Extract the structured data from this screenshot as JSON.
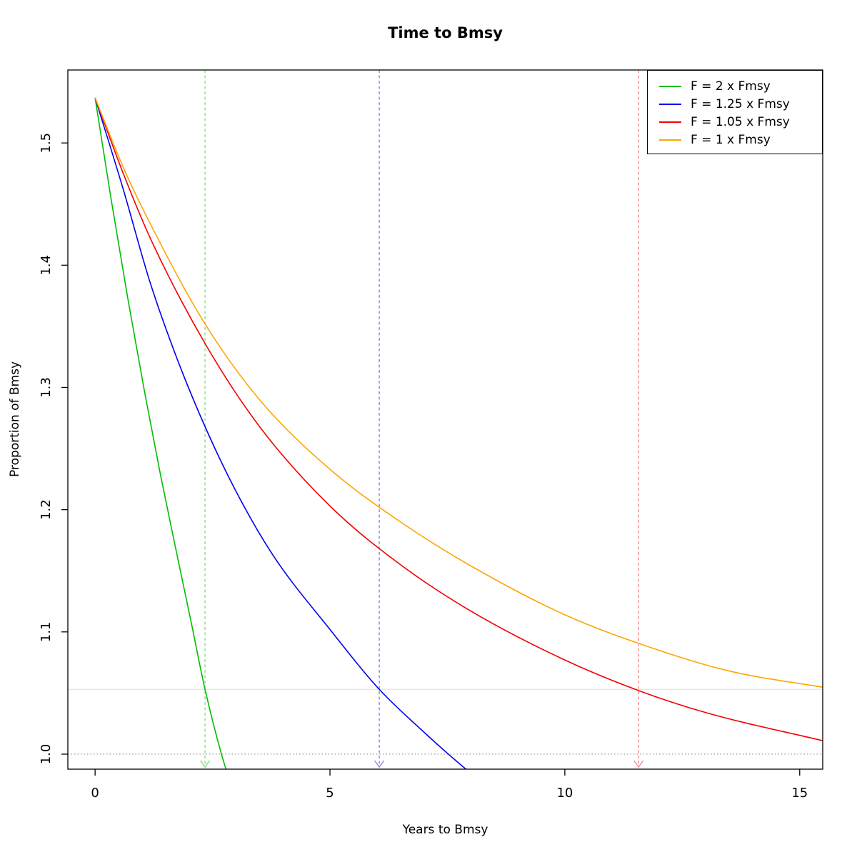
{
  "chart_data": {
    "type": "line",
    "title": "Time to Bmsy",
    "xlabel": "Years to Bmsy",
    "ylabel": "Proportion of Bmsy",
    "x_ticks": [
      0,
      5,
      10,
      15
    ],
    "y_ticks": [
      {
        "value": 1.0,
        "label": "1.0"
      },
      {
        "value": 1.1,
        "label": "1.1"
      },
      {
        "value": 1.2,
        "label": "1.2"
      },
      {
        "value": 1.3,
        "label": "1.3"
      },
      {
        "value": 1.4,
        "label": "1.4"
      },
      {
        "value": 1.5,
        "label": "1.5"
      }
    ],
    "xlim": [
      -0.58,
      15.49
    ],
    "ylim": [
      0.9877,
      1.5597
    ],
    "grid": false,
    "legend_position": "topright",
    "start_proportion": 1.537,
    "threshold_line": {
      "value": 1.053,
      "color": "#E3E3E3",
      "style": "solid"
    },
    "reference_line": {
      "value": 1.0,
      "color": "#8C8C8C",
      "style": "dotted"
    },
    "series": [
      {
        "name": "F = 2 x Fmsy",
        "color": "#00BE00",
        "arrow_color": "#82E082",
        "time_to_bmsy_years": 2.34,
        "points": [
          [
            0,
            1.537
          ],
          [
            0.35,
            1.452
          ],
          [
            0.7,
            1.372
          ],
          [
            1.05,
            1.297
          ],
          [
            1.4,
            1.227
          ],
          [
            1.75,
            1.162
          ],
          [
            2.05,
            1.107
          ],
          [
            2.34,
            1.053
          ],
          [
            2.69,
            1.0
          ],
          [
            3.0,
            0.962
          ]
        ]
      },
      {
        "name": "F = 1.25 x Fmsy",
        "color": "#0000F0",
        "arrow_color": "#8585F2",
        "time_to_bmsy_years": 6.05,
        "points": [
          [
            0,
            1.537
          ],
          [
            0.6,
            1.462
          ],
          [
            1.17,
            1.386
          ],
          [
            1.75,
            1.323
          ],
          [
            2.34,
            1.268
          ],
          [
            3.0,
            1.215
          ],
          [
            3.8,
            1.162
          ],
          [
            5.0,
            1.102
          ],
          [
            6.05,
            1.053
          ],
          [
            7.0,
            1.018
          ],
          [
            7.52,
            1.0
          ],
          [
            8.1,
            0.981
          ]
        ]
      },
      {
        "name": "F = 1.05 x Fmsy",
        "color": "#F40000",
        "arrow_color": "#F98B8B",
        "time_to_bmsy_years": 11.57,
        "points": [
          [
            0,
            1.537
          ],
          [
            0.6,
            1.475
          ],
          [
            1.2,
            1.42
          ],
          [
            2.34,
            1.336
          ],
          [
            3.5,
            1.268
          ],
          [
            5.0,
            1.203
          ],
          [
            6.5,
            1.155
          ],
          [
            8.0,
            1.117
          ],
          [
            10.0,
            1.077
          ],
          [
            11.57,
            1.052
          ],
          [
            13.0,
            1.034
          ],
          [
            15.6,
            1.01
          ]
        ]
      },
      {
        "name": "F = 1 x Fmsy",
        "color": "#FFA500",
        "arrow_color": null,
        "time_to_bmsy_years": null,
        "points": [
          [
            0,
            1.537
          ],
          [
            0.6,
            1.48
          ],
          [
            1.2,
            1.432
          ],
          [
            2.34,
            1.352
          ],
          [
            3.5,
            1.29
          ],
          [
            5.0,
            1.233
          ],
          [
            6.5,
            1.19
          ],
          [
            8.0,
            1.154
          ],
          [
            10.0,
            1.114
          ],
          [
            12.0,
            1.085
          ],
          [
            13.5,
            1.068
          ],
          [
            15.6,
            1.054
          ]
        ]
      }
    ]
  }
}
